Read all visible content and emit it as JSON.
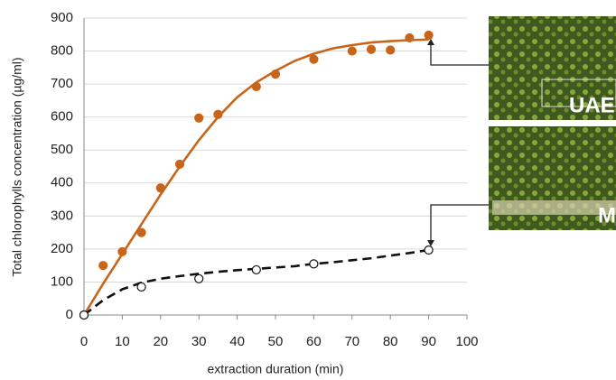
{
  "chart_data": {
    "type": "scatter",
    "x_label": "extraction duration (min)",
    "y_label": "Total chlorophylls concentration (µg/ml)",
    "xlim": [
      0,
      100
    ],
    "xticks": [
      0,
      10,
      20,
      30,
      40,
      50,
      60,
      70,
      80,
      90,
      100
    ],
    "ylim": [
      0,
      900
    ],
    "yticks": [
      0,
      100,
      200,
      300,
      400,
      500,
      600,
      700,
      800,
      900
    ],
    "grid": true,
    "series": [
      {
        "style": "line",
        "dash": false,
        "color": "#c8651b",
        "x": [
          0,
          5,
          10,
          15,
          20,
          25,
          30,
          35,
          40,
          45,
          50,
          55,
          60,
          65,
          70,
          75,
          80,
          85,
          90
        ],
        "values": [
          0,
          95,
          185,
          275,
          365,
          450,
          530,
          600,
          660,
          705,
          740,
          770,
          792,
          808,
          818,
          826,
          830,
          833,
          835
        ]
      },
      {
        "style": "line",
        "dash": true,
        "color": "#111111",
        "x": [
          0,
          5,
          10,
          15,
          20,
          25,
          30,
          35,
          40,
          45,
          50,
          55,
          60,
          65,
          70,
          75,
          80,
          85,
          90
        ],
        "values": [
          0,
          45,
          78,
          98,
          110,
          118,
          125,
          131,
          136,
          140,
          144,
          148,
          155,
          160,
          166,
          172,
          180,
          188,
          197
        ]
      },
      {
        "style": "points",
        "filled": true,
        "color": "#c8651b",
        "x": [
          0,
          5,
          10,
          15,
          20,
          25,
          30,
          35,
          45,
          50,
          60,
          70,
          75,
          80,
          85,
          90
        ],
        "values": [
          0,
          150,
          192,
          250,
          385,
          457,
          597,
          608,
          692,
          730,
          775,
          800,
          805,
          803,
          840,
          848
        ]
      },
      {
        "style": "points",
        "filled": false,
        "color": "#111111",
        "x": [
          0,
          15,
          30,
          45,
          60,
          90
        ],
        "values": [
          0,
          85,
          110,
          137,
          155,
          197
        ]
      }
    ],
    "panels": [
      "UAE",
      "M"
    ]
  }
}
